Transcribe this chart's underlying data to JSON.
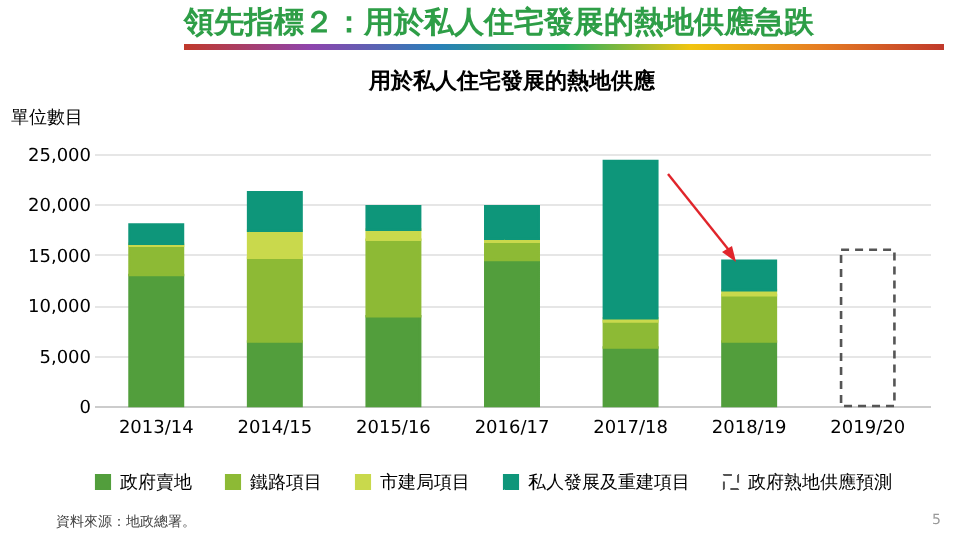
{
  "chart_data": {
    "type": "bar",
    "title": "領先指標２：用於私人住宅發展的熱地供應急跌",
    "subtitle": "用於私人住宅發展的熱地供應",
    "ylabel": "單位數目",
    "categories": [
      "2013/14",
      "2014/15",
      "2015/16",
      "2016/17",
      "2017/18",
      "2018/19",
      "2019/20"
    ],
    "stacked": true,
    "series": [
      {
        "name": "政府賣地",
        "color": "#529e3c",
        "values": [
          13000,
          6400,
          8900,
          14500,
          5800,
          6400,
          null
        ]
      },
      {
        "name": "鐵路項目",
        "color": "#8dba35",
        "values": [
          2900,
          8300,
          7600,
          1800,
          2600,
          4600,
          null
        ]
      },
      {
        "name": "市建局項目",
        "color": "#c9d94c",
        "values": [
          200,
          2700,
          1000,
          300,
          300,
          500,
          null
        ]
      },
      {
        "name": "私人發展及重建項目",
        "color": "#0e967a",
        "values": [
          1900,
          3800,
          2300,
          3200,
          15600,
          2900,
          null
        ]
      },
      {
        "name": "政府熟地供應預測",
        "color": "#555555",
        "line_style": "dashed",
        "values": [
          null,
          null,
          null,
          null,
          null,
          null,
          15500
        ]
      }
    ],
    "ylim": [
      0,
      25000
    ],
    "yticks": [
      0,
      {
        "value": 5000,
        "label": "5,000"
      },
      {
        "value": 10000,
        "label": "10,000"
      },
      {
        "value": 15000,
        "label": "15,000"
      },
      {
        "value": 20000,
        "label": "20,000"
      },
      {
        "value": 25000,
        "label": "25,000"
      }
    ],
    "grid": "y",
    "legend": "bottom",
    "annotations": [
      "資料來源：地政總署。",
      "5"
    ]
  }
}
